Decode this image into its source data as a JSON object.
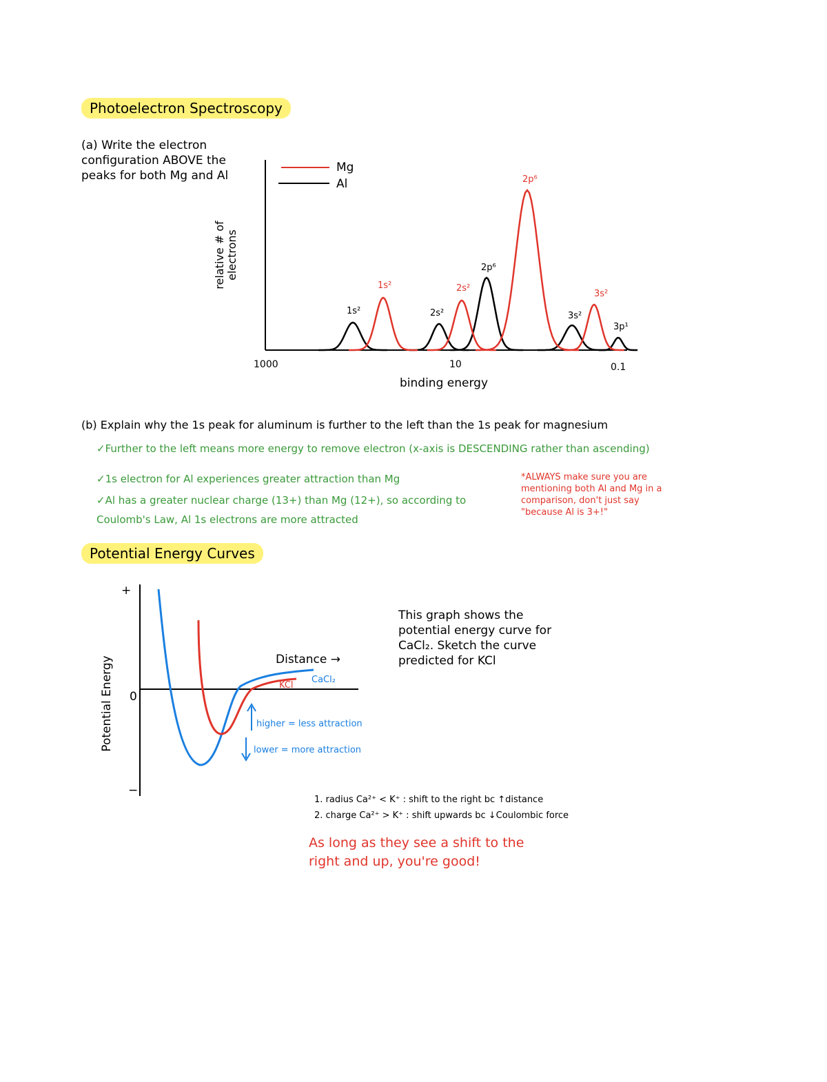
{
  "section1": {
    "title": "Photoelectron Spectroscopy",
    "question_a": "(a) Write the electron configuration ABOVE the peaks for both Mg and Al",
    "question_b": "(b) Explain why the 1s peak for aluminum is further to the left than the 1s peak for magnesium",
    "answers": [
      "✓Further to the left means more energy to remove electron (x-axis is DESCENDING rather than ascending)",
      "✓1s electron for Al experiences greater attraction than Mg",
      "✓Al has a greater nuclear charge (13+) than Mg (12+), so according to Coulomb's Law, Al 1s electrons are more attracted"
    ],
    "note": "*ALWAYS make sure you are mentioning both Al and Mg in a comparison, don't just say \"because Al is 3+!\""
  },
  "pes": {
    "legend": [
      "Mg",
      "Al"
    ],
    "y_label": "relative # of electrons",
    "x_label": "binding energy",
    "x_ticks": [
      "1000",
      "10",
      "0.1"
    ],
    "al_peaks": [
      "1s²",
      "2s²",
      "2p⁶",
      "3s²",
      "3p¹"
    ],
    "mg_peaks": [
      "1s²",
      "2s²",
      "2p⁶",
      "3s²"
    ]
  },
  "section2": {
    "title": "Potential Energy Curves",
    "prompt": "This graph shows the potential energy curve for CaCl₂. Sketch the curve predicted for KCl",
    "reasons": [
      "1. radius Ca²⁺ < K⁺ : shift to the right bc ↑distance",
      "2. charge Ca²⁺ > K⁺ : shift upwards bc ↓Coulombic force"
    ],
    "conclusion": "As long as they see a shift to the right and up, you're good!"
  },
  "pe_chart": {
    "y_label": "Potential Energy",
    "y_ticks": [
      "+",
      "0",
      "−"
    ],
    "x_label": "Distance →",
    "curves": [
      "CaCl₂",
      "KCl"
    ],
    "annotations": [
      "higher = less attraction",
      "lower = more attraction"
    ]
  }
}
